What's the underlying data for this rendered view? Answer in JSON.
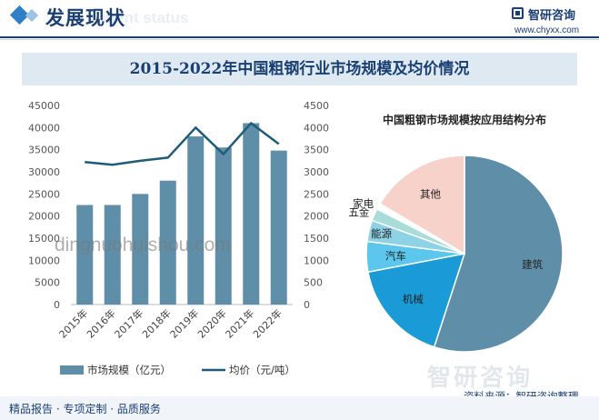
{
  "header": {
    "title": "发展现状",
    "watermark_text": "ment status",
    "brand": "智研咨询",
    "url": "www.chyxx.com"
  },
  "chart_title": "2015-2022年中国粗钢行业市场规模及均价情况",
  "footer": {
    "services": "精品报告 · 专项定制 · 品质服务",
    "source": "资料来源：智研咨询整理",
    "bottom_brand": "智研咨询"
  },
  "watermark": "dingnuohuishou.com",
  "colors": {
    "bar": "#5f8fa8",
    "line": "#1d5c78",
    "navy": "#1a3f73"
  },
  "chart_data": [
    {
      "type": "bar",
      "title": "2015-2022年中国粗钢行业市场规模及均价情况",
      "categories": [
        "2015年",
        "2016年",
        "2017年",
        "2018年",
        "2019年",
        "2020年",
        "2021年",
        "2022年"
      ],
      "series": [
        {
          "name": "市场规模（亿元）",
          "type": "bar",
          "axis": "left",
          "values": [
            22500,
            22500,
            25000,
            28000,
            38000,
            35500,
            41000,
            34800
          ]
        },
        {
          "name": "均价（元/吨）",
          "type": "line",
          "axis": "right",
          "values": [
            3220,
            3160,
            3250,
            3320,
            4000,
            3400,
            4100,
            3630
          ]
        }
      ],
      "y_left_ticks": [
        "0",
        "5000",
        "10000",
        "15000",
        "20000",
        "25000",
        "30000",
        "35000",
        "40000",
        "45000"
      ],
      "y_right_ticks": [
        "0",
        "500",
        "1000",
        "1500",
        "2000",
        "2500",
        "3000",
        "3500",
        "4000",
        "4500"
      ],
      "ylim_left": [
        0,
        45000
      ],
      "ylim_right": [
        0,
        4500
      ],
      "grid": false,
      "legend": "bottom"
    },
    {
      "type": "pie",
      "title": "中国粗钢市场规模按应用结构分布",
      "slices": [
        {
          "label": "建筑",
          "value": 55.0,
          "color": "#5f8fa8"
        },
        {
          "label": "机械",
          "value": 17.0,
          "color": "#1a9bd7"
        },
        {
          "label": "汽车",
          "value": 5.0,
          "color": "#5cc6ec"
        },
        {
          "label": "能源",
          "value": 3.5,
          "color": "#8ed2e6"
        },
        {
          "label": "五金",
          "value": 2.0,
          "color": "#a8dcd8"
        },
        {
          "label": "家电",
          "value": 1.0,
          "color": "#ffffff"
        },
        {
          "label": "其他",
          "value": 16.5,
          "color": "#f6d2ca"
        }
      ]
    }
  ]
}
